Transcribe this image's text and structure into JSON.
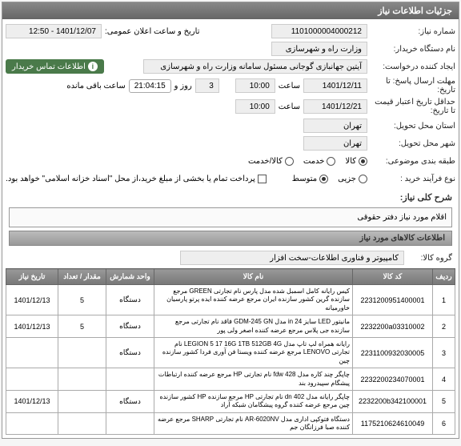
{
  "panel": {
    "title": "جزئیات اطلاعات نیاز"
  },
  "fields": {
    "need_number_label": "شماره نیاز:",
    "need_number": "1101000004000212",
    "announce_label": "تاریخ و ساعت اعلان عمومی:",
    "announce_value": "1401/12/07 - 12:50",
    "buyer_label": "نام دستگاه خریدار:",
    "buyer_value": "وزارت راه و شهرسازی",
    "requester_label": "ایجاد کننده درخواست:",
    "requester_value": "آیتین جهانبازی گوجانی مسئول سامانه وزارت راه و شهرسازی",
    "contact_button": "اطلاعات تماس خریدار",
    "deadline_label": "مهلت ارسال پاسخ: تا تاریخ:",
    "deadline_date": "1401/12/11",
    "hour_label": "ساعت",
    "deadline_hour": "10:00",
    "day_label": "روز و",
    "day_value": "3",
    "remain_label": "ساعت باقی مانده",
    "remain_time": "21:04:15",
    "min_credit_label": "حداقل تاریخ اعتبار قیمت تا تاریخ:",
    "credit_date": "1401/12/21",
    "credit_hour": "10:00",
    "province_label": "استان محل تحویل:",
    "province_value": "تهران",
    "city_label": "شهر محل تحویل:",
    "city_value": "تهران",
    "category_label": "طبقه بندی موضوعی:",
    "cat_goods": "کالا",
    "cat_service": "خدمت",
    "cat_both": "کالا/خدمت",
    "buy_type_label": "نوع فرآیند خرید :",
    "buy_small": "جزیی",
    "buy_medium": "متوسط",
    "buy_note": "پرداخت تمام یا بخشی از مبلغ خرید،از محل \"اسناد خزانه اسلامی\" خواهد بود.",
    "total_desc_label": "شرح کلی نیاز:",
    "total_desc": "اقلام مورد نیاز دفتر حقوقی",
    "items_header": "اطلاعات کالاهای مورد نیاز",
    "group_label": "گروه کالا:",
    "group_value": "کامپیوتر و فناوری اطلاعات-سخت افزار"
  },
  "table": {
    "headers": {
      "row": "ردیف",
      "code": "کد کالا",
      "name": "نام کالا",
      "unit": "واحد شمارش",
      "qty": "مقدار / تعداد",
      "date": "تاریخ نیاز"
    },
    "rows": [
      {
        "n": "1",
        "code": "2231200951400001",
        "name": "کیس رایانه کامل اسمبل شده مدل پارس نام تجارتی GREEN مرجع سازنده گرین کشور سازنده ایران مرجع عرضه کننده ایده پرتو پارسیان خاورمیانه",
        "unit": "دستگاه",
        "qty": "5",
        "date": "1401/12/13"
      },
      {
        "n": "2",
        "code": "2232200a03310002",
        "name": "مانیتور LED سایز 24 in مدل GDM-245 GN فاقد نام تجارتی مرجع سازنده جی پلاس مرجع عرضه کننده اصغر ولی پور",
        "unit": "دستگاه",
        "qty": "5",
        "date": "1401/12/13"
      },
      {
        "n": "3",
        "code": "2231100932030005",
        "name": "رایانه همراه لپ تاپ مدل LEGION 5 17 16G 1TB 512GB 4G نام تجارتی LENOVO مرجع عرضه کننده ویستا فن آوری فردا کشور سازنده چین",
        "unit": "دستگاه",
        "qty": "",
        "date": ""
      },
      {
        "n": "4",
        "code": "2232200234070001",
        "name": "چاپگر چند کاره مدل fdw 428 نام تجارتی HP مرجع عرضه کننده ارتباطات پیشگام سپیدرود بند",
        "unit": "",
        "qty": "",
        "date": ""
      },
      {
        "n": "5",
        "code": "2232200b342100001",
        "name": "چاپگر رایانه مدل 402 dn نام تجارتی HP مرجع سازنده HP کشور سازنده چین مرجع عرضه کننده گروه پیشگامان شبکه آراد",
        "unit": "دستگاه",
        "qty": "",
        "date": "1401/12/13"
      },
      {
        "n": "6",
        "code": "1175210624610049",
        "name": "دستگاه فتوکپی اداری مدل AR-6020NV نام تجارتی SHARP مرجع عرضه کننده صبا فرزانگان جم",
        "unit": "",
        "qty": "",
        "date": ""
      }
    ]
  }
}
